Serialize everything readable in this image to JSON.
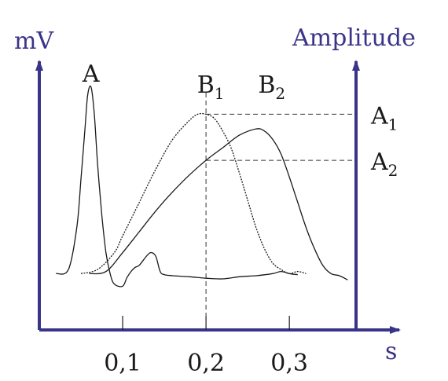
{
  "chart_data": {
    "type": "line",
    "xlabel": "s",
    "ylabel_left": "mV",
    "ylabel_right": "Amplitude",
    "x_ticks": [
      {
        "value": 0.1,
        "label": "0,1"
      },
      {
        "value": 0.2,
        "label": "0,2"
      },
      {
        "value": 0.3,
        "label": "0,3"
      }
    ],
    "xlim": [
      0,
      0.38
    ],
    "ylim": [
      0,
      1
    ],
    "grid": false,
    "reference_line_x": 0.2,
    "reference_levels": [
      {
        "label_main": "A",
        "label_sub": "1",
        "y": 0.86
      },
      {
        "label_main": "A",
        "label_sub": "2",
        "y": 0.64
      }
    ],
    "series": [
      {
        "name": "",
        "peak_label": {
          "main": "A",
          "sub": ""
        },
        "x": [
          0.02,
          0.035,
          0.045,
          0.05,
          0.055,
          0.058,
          0.062,
          0.066,
          0.07,
          0.075,
          0.08,
          0.085,
          0.09,
          0.1,
          0.105,
          0.11,
          0.115,
          0.12,
          0.13,
          0.135,
          0.14,
          0.145,
          0.15,
          0.16,
          0.18,
          0.2,
          0.22,
          0.24,
          0.26,
          0.28,
          0.29,
          0.3,
          0.31
        ],
        "y": [
          0.1,
          0.12,
          0.32,
          0.55,
          0.8,
          0.95,
          0.99,
          0.86,
          0.62,
          0.38,
          0.2,
          0.1,
          0.05,
          0.04,
          0.08,
          0.11,
          0.13,
          0.14,
          0.19,
          0.2,
          0.18,
          0.11,
          0.095,
          0.09,
          0.085,
          0.078,
          0.075,
          0.085,
          0.09,
          0.1,
          0.11,
          0.1,
          0.095
        ]
      },
      {
        "name": "",
        "peak_label": {
          "main": "B",
          "sub": "1"
        },
        "x": [
          0.05,
          0.07,
          0.09,
          0.1,
          0.12,
          0.14,
          0.16,
          0.18,
          0.19,
          0.2,
          0.21,
          0.22,
          0.23,
          0.24,
          0.25,
          0.26,
          0.27,
          0.28,
          0.29,
          0.3,
          0.31,
          0.32
        ],
        "y": [
          0.1,
          0.12,
          0.2,
          0.28,
          0.44,
          0.6,
          0.74,
          0.83,
          0.86,
          0.86,
          0.84,
          0.78,
          0.7,
          0.58,
          0.45,
          0.32,
          0.22,
          0.15,
          0.12,
          0.1,
          0.11,
          0.1
        ]
      },
      {
        "name": "",
        "peak_label": {
          "main": "B",
          "sub": "2"
        },
        "x": [
          0.06,
          0.08,
          0.1,
          0.12,
          0.14,
          0.16,
          0.18,
          0.2,
          0.22,
          0.24,
          0.26,
          0.27,
          0.28,
          0.29,
          0.3,
          0.31,
          0.32,
          0.33,
          0.34,
          0.35,
          0.36,
          0.37
        ],
        "y": [
          0.1,
          0.11,
          0.2,
          0.3,
          0.4,
          0.49,
          0.57,
          0.64,
          0.7,
          0.76,
          0.79,
          0.78,
          0.74,
          0.67,
          0.56,
          0.44,
          0.32,
          0.22,
          0.14,
          0.1,
          0.09,
          0.07
        ]
      }
    ]
  },
  "colors": {
    "axis": "#3a3488",
    "curve": "#1a1a1a",
    "reference": "#333333",
    "label": "#1a1a1a"
  }
}
